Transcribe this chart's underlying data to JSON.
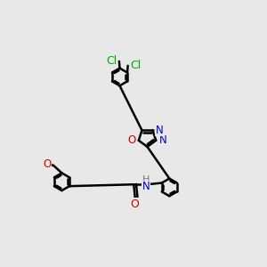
{
  "bg_color": "#e8e8e8",
  "atom_colors": {
    "C": "#000000",
    "N": "#0000cd",
    "O": "#cc0000",
    "Cl": "#00aa00",
    "H": "#777777"
  },
  "bond_color": "#000000",
  "bond_width": 1.8,
  "dbo": 0.055
}
